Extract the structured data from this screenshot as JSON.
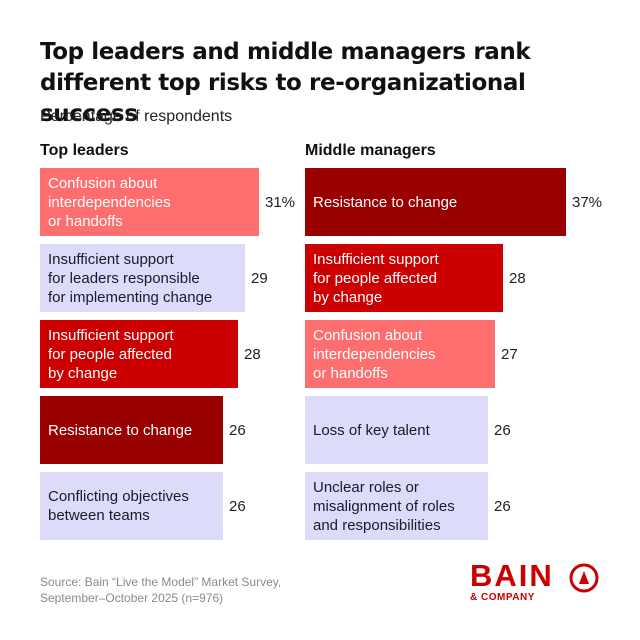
{
  "title": "Top leaders and middle managers rank different top risks to re-organizational success",
  "subtitle": "Percentage of respondents",
  "source": "Source: Bain “Live the Model” Market Survey,\nSeptember–October 2025 (n=976)",
  "logo": {
    "word": "BAIN",
    "sub": "& COMPANY",
    "icon": "bain-circle-arrow-icon"
  },
  "colors": {
    "salmon": "#ff6e6e",
    "lavender": "#dcdcfa",
    "red": "#cc0000",
    "dark_red": "#990000"
  },
  "chart_data": [
    {
      "type": "bar",
      "orientation": "horizontal",
      "title": "Top leaders",
      "ylabel": "Percentage of respondents",
      "xlim": [
        0,
        37
      ],
      "categories": [
        "Confusion about\ninterdependencies\nor handoffs",
        "Insufficient support\nfor leaders responsible\nfor implementing change",
        "Insufficient support\nfor people affected\nby change",
        "Resistance to change",
        "Conflicting objectives\nbetween teams"
      ],
      "values": [
        31,
        29,
        28,
        26,
        26
      ],
      "value_labels": [
        "31%",
        "29",
        "28",
        "26",
        "26"
      ],
      "bar_colors": [
        "salmon",
        "lavender",
        "red",
        "dark_red",
        "lavender"
      ]
    },
    {
      "type": "bar",
      "orientation": "horizontal",
      "title": "Middle managers",
      "ylabel": "Percentage of respondents",
      "xlim": [
        0,
        37
      ],
      "categories": [
        "Resistance to change",
        "Insufficient support\nfor people affected\nby change",
        "Confusion about\ninterdependencies\nor handoffs",
        "Loss of key talent",
        "Unclear roles or\nmisalignment of roles\nand responsibilities"
      ],
      "values": [
        37,
        28,
        27,
        26,
        26
      ],
      "value_labels": [
        "37%",
        "28",
        "27",
        "26",
        "26"
      ],
      "bar_colors": [
        "dark_red",
        "red",
        "salmon",
        "lavender",
        "lavender"
      ]
    }
  ]
}
